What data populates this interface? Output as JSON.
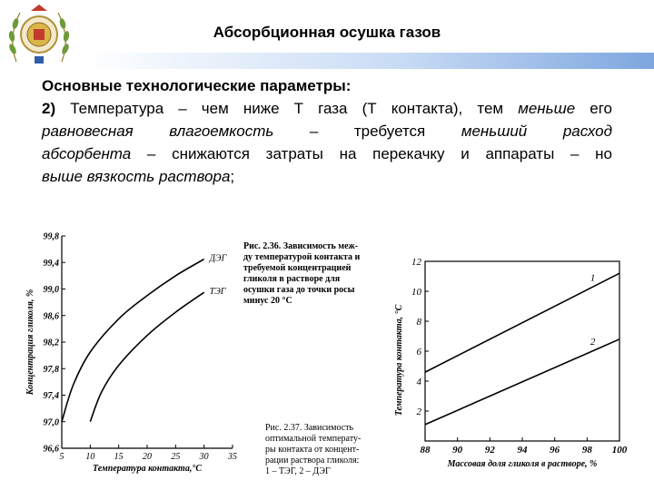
{
  "slide": {
    "title": "Абсорбционная осушка газов",
    "heading": "Основные технологические параметры:",
    "item_number": "2)",
    "line1": [
      {
        "t": " Температура – чем ниже Т газа (Т контакта), тем ",
        "i": false
      },
      {
        "t": "меньше",
        "i": true
      },
      {
        "t": " его",
        "i": false
      }
    ],
    "line2": [
      {
        "t": "равновесная влагоемкость",
        "i": true
      },
      {
        "t": " – требуется ",
        "i": false
      },
      {
        "t": "меньший расход",
        "i": true
      }
    ],
    "line3": [
      {
        "t": "абсорбента",
        "i": true
      },
      {
        "t": " – снижаются затраты на перекачку и аппараты – но",
        "i": false
      }
    ],
    "line4": [
      {
        "t": "выше вязкость раствора",
        "i": true
      },
      {
        "t": ";",
        "i": false
      }
    ]
  },
  "fig1": {
    "caption_lines": [
      "Рис. 2.36. Зависимость меж-",
      "ду температурой контакта и",
      "требуемой концентрацией",
      "гликоля в растворе для",
      "осушки газа до точки росы",
      "минус 20 °C"
    ]
  },
  "fig2": {
    "caption_lines": [
      "Рис. 2.37. Зависимость",
      "оптимальной температу-",
      "ры контакта от концент-",
      "рации раствора гликоля:",
      "1 – ТЭГ, 2 – ДЭГ"
    ]
  },
  "chart_data": [
    {
      "type": "line",
      "title": "",
      "xlabel": "Температура контакта,°С",
      "ylabel": "Концентрация гликоля, %",
      "xlim": [
        5,
        35
      ],
      "ylim": [
        96.6,
        99.8
      ],
      "xticks": [
        "5",
        "10",
        "15",
        "20",
        "25",
        "30",
        "35"
      ],
      "yticks": [
        "96,6",
        "97,0",
        "97,4",
        "97,8",
        "98,2",
        "98,6",
        "99,0",
        "99,4",
        "99,8"
      ],
      "series": [
        {
          "name": "ДЭГ",
          "x": [
            5,
            7,
            10,
            15,
            20,
            25,
            30
          ],
          "y": [
            97.0,
            97.55,
            98.05,
            98.55,
            98.9,
            99.2,
            99.45
          ]
        },
        {
          "name": "ТЭГ",
          "x": [
            10,
            12,
            15,
            20,
            25,
            30
          ],
          "y": [
            97.0,
            97.45,
            97.85,
            98.3,
            98.65,
            98.95
          ]
        }
      ],
      "grid": false
    },
    {
      "type": "line",
      "title": "",
      "xlabel": "Массовая доля гликоля в растворе, %",
      "ylabel": "Температура контакта, °С",
      "xlim": [
        88,
        100
      ],
      "ylim": [
        0,
        12
      ],
      "xticks": [
        "88",
        "90",
        "92",
        "94",
        "96",
        "98",
        "100"
      ],
      "yticks": [
        "2",
        "4",
        "6",
        "8",
        "10",
        "12"
      ],
      "series": [
        {
          "name": "1",
          "x": [
            88,
            100
          ],
          "y": [
            4.6,
            11.2
          ]
        },
        {
          "name": "2",
          "x": [
            88,
            100
          ],
          "y": [
            1.1,
            6.8
          ]
        }
      ],
      "grid": false
    }
  ]
}
